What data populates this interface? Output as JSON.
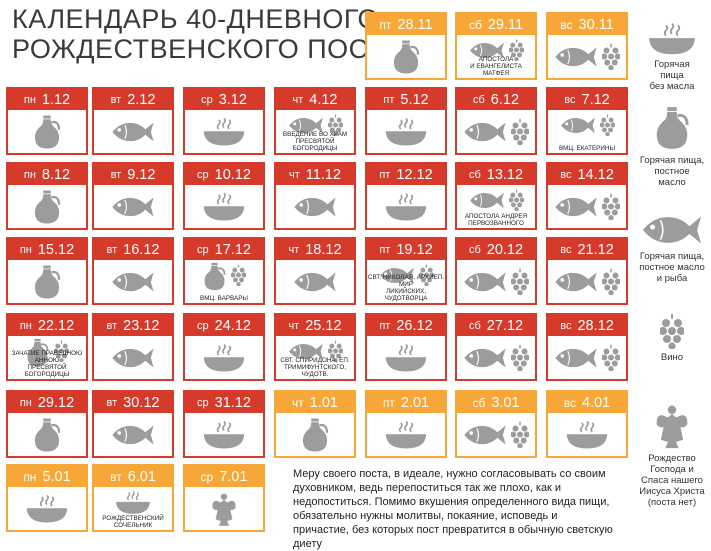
{
  "title": {
    "line1": "КАЛЕНДАРЬ 40-ДНЕВНОГО",
    "line2": "РОЖДЕСТВЕНСКОГО ПОСТА"
  },
  "colors": {
    "red": "#d63a2a",
    "orange": "#f7a737",
    "icon": "#9c9c9c"
  },
  "days": [
    {
      "dow": "пт",
      "date": "28.11",
      "color": "orange",
      "icons": [
        "jug"
      ]
    },
    {
      "dow": "сб",
      "date": "29.11",
      "color": "orange",
      "icons": [
        "fish",
        "grapes"
      ],
      "note": "Апостола\nи евангелиста Матфея"
    },
    {
      "dow": "вс",
      "date": "30.11",
      "color": "orange",
      "icons": [
        "fish",
        "grapes"
      ]
    },
    {
      "dow": "пн",
      "date": "1.12",
      "color": "red",
      "icons": [
        "jug"
      ]
    },
    {
      "dow": "вт",
      "date": "2.12",
      "color": "red",
      "icons": [
        "fish"
      ]
    },
    {
      "dow": "ср",
      "date": "3.12",
      "color": "red",
      "icons": [
        "bowl"
      ]
    },
    {
      "dow": "чт",
      "date": "4.12",
      "color": "red",
      "icons": [
        "fish",
        "grapes"
      ],
      "note": "Введение во храм\nПресвятой Богородицы"
    },
    {
      "dow": "пт",
      "date": "5.12",
      "color": "red",
      "icons": [
        "bowl"
      ]
    },
    {
      "dow": "сб",
      "date": "6.12",
      "color": "red",
      "icons": [
        "fish",
        "grapes"
      ]
    },
    {
      "dow": "вс",
      "date": "7.12",
      "color": "red",
      "icons": [
        "fish",
        "grapes"
      ],
      "note": "ВМЦ. Екатерины"
    },
    {
      "dow": "пн",
      "date": "8.12",
      "color": "red",
      "icons": [
        "jug"
      ]
    },
    {
      "dow": "вт",
      "date": "9.12",
      "color": "red",
      "icons": [
        "fish"
      ]
    },
    {
      "dow": "ср",
      "date": "10.12",
      "color": "red",
      "icons": [
        "bowl"
      ]
    },
    {
      "dow": "чт",
      "date": "11.12",
      "color": "red",
      "icons": [
        "fish"
      ]
    },
    {
      "dow": "пт",
      "date": "12.12",
      "color": "red",
      "icons": [
        "bowl"
      ]
    },
    {
      "dow": "сб",
      "date": "13.12",
      "color": "red",
      "icons": [
        "fish",
        "grapes"
      ],
      "note": "Апостола Андрея\nПервозванного"
    },
    {
      "dow": "вс",
      "date": "14.12",
      "color": "red",
      "icons": [
        "fish",
        "grapes"
      ]
    },
    {
      "dow": "пн",
      "date": "15.12",
      "color": "red",
      "icons": [
        "jug"
      ]
    },
    {
      "dow": "вт",
      "date": "16.12",
      "color": "red",
      "icons": [
        "fish"
      ]
    },
    {
      "dow": "ср",
      "date": "17.12",
      "color": "red",
      "icons": [
        "jug",
        "grapes"
      ],
      "note": "ВМЦ. Варвары"
    },
    {
      "dow": "чт",
      "date": "18.12",
      "color": "red",
      "icons": [
        "fish"
      ]
    },
    {
      "dow": "пт",
      "date": "19.12",
      "color": "red",
      "icons": [
        "fish",
        "grapes"
      ],
      "note": "Свт. Николая, архиеп. Мир\nЛикийских, чудотворца"
    },
    {
      "dow": "сб",
      "date": "20.12",
      "color": "red",
      "icons": [
        "fish",
        "grapes"
      ]
    },
    {
      "dow": "вс",
      "date": "21.12",
      "color": "red",
      "icons": [
        "fish",
        "grapes"
      ]
    },
    {
      "dow": "пн",
      "date": "22.12",
      "color": "red",
      "icons": [
        "jug",
        "grapes"
      ],
      "note": "Зачатие праведною Анною\nПресвятой Богородицы"
    },
    {
      "dow": "вт",
      "date": "23.12",
      "color": "red",
      "icons": [
        "fish"
      ]
    },
    {
      "dow": "ср",
      "date": "24.12",
      "color": "red",
      "icons": [
        "bowl"
      ]
    },
    {
      "dow": "чт",
      "date": "25.12",
      "color": "red",
      "icons": [
        "fish",
        "grapes"
      ],
      "note": "Свт. Спиридона, еп.\nТримифунтского, чудотв."
    },
    {
      "dow": "пт",
      "date": "26.12",
      "color": "red",
      "icons": [
        "bowl"
      ]
    },
    {
      "dow": "сб",
      "date": "27.12",
      "color": "red",
      "icons": [
        "fish",
        "grapes"
      ]
    },
    {
      "dow": "вс",
      "date": "28.12",
      "color": "red",
      "icons": [
        "fish",
        "grapes"
      ]
    },
    {
      "dow": "пн",
      "date": "29.12",
      "color": "red",
      "icons": [
        "jug"
      ]
    },
    {
      "dow": "вт",
      "date": "30.12",
      "color": "red",
      "icons": [
        "fish"
      ]
    },
    {
      "dow": "ср",
      "date": "31.12",
      "color": "red",
      "icons": [
        "bowl"
      ]
    },
    {
      "dow": "чт",
      "date": "1.01",
      "color": "orange",
      "icons": [
        "jug"
      ]
    },
    {
      "dow": "пт",
      "date": "2.01",
      "color": "orange",
      "icons": [
        "bowl"
      ]
    },
    {
      "dow": "сб",
      "date": "3.01",
      "color": "orange",
      "icons": [
        "fish",
        "grapes"
      ]
    },
    {
      "dow": "вс",
      "date": "4.01",
      "color": "orange",
      "icons": [
        "bowl"
      ]
    },
    {
      "dow": "пн",
      "date": "5.01",
      "color": "orange",
      "icons": [
        "bowl"
      ]
    },
    {
      "dow": "вт",
      "date": "6.01",
      "color": "orange",
      "icons": [
        "bowl"
      ],
      "note": "Рождественский\nсочельник"
    },
    {
      "dow": "ср",
      "date": "7.01",
      "color": "orange",
      "icons": [
        "angel"
      ]
    }
  ],
  "legend": [
    {
      "icon": "bowl",
      "label": "Горячая\nпища\nбез масла"
    },
    {
      "icon": "jug",
      "label": "Горячая пища,\nпостное\nмасло"
    },
    {
      "icon": "fish",
      "label": "Горячая пища,\nпостное масло\nи рыба"
    },
    {
      "icon": "grapes",
      "label": "Вино"
    },
    {
      "icon": "angel",
      "label": "Рождество\nГоспода и\nСпаса нашего\nИисуса Христа\n(поста нет)"
    }
  ],
  "info_text": "Меру своего поста, в идеале, нужно согласовывать со своим духовником, ведь перепоститься так же плохо, как и недопоститься. Помимо вкушения определенного вида пищи, обязательно нужны молитвы, покаяние, исповедь и причастие, без которых пост превратится в обычную светскую диету"
}
